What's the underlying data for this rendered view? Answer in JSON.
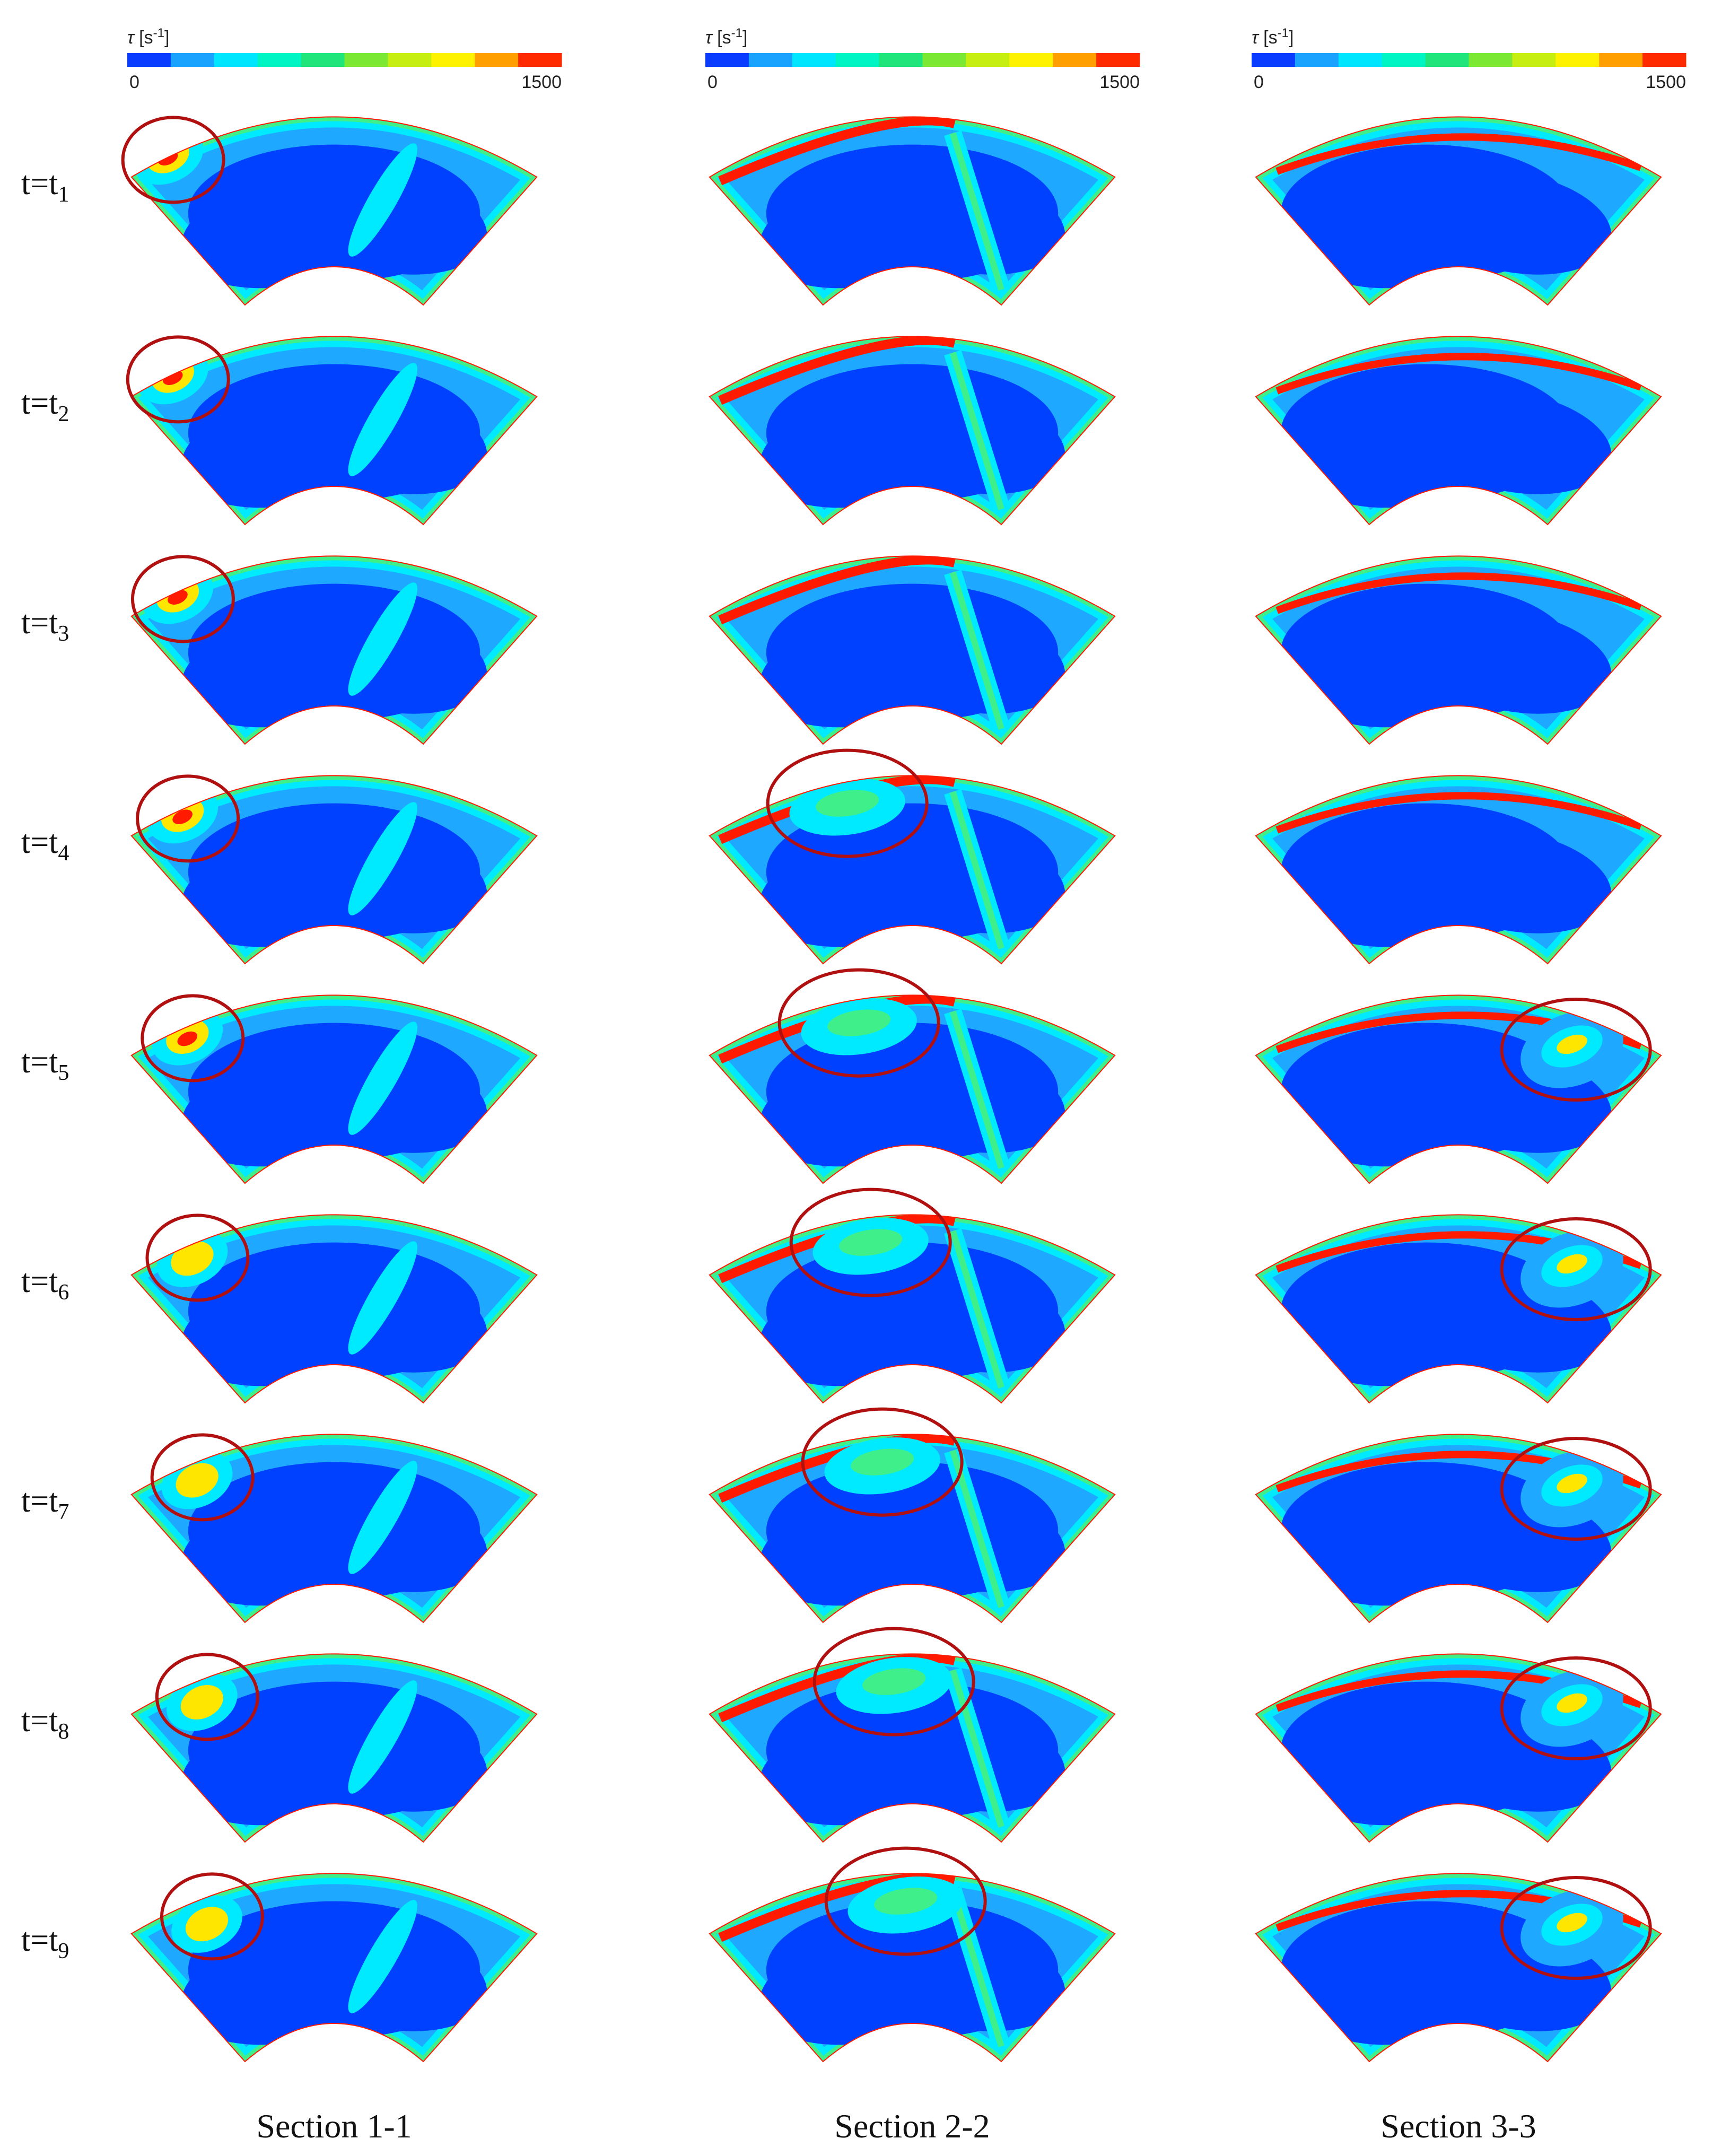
{
  "figure": {
    "colorbar": {
      "title_symbol": "τ",
      "title_unit": "[s",
      "title_exp": "-1",
      "title_close": "]",
      "min_label": "0",
      "max_label": "1500",
      "colors": [
        "#0a3cff",
        "#1aa2ff",
        "#00e6ff",
        "#00f5c4",
        "#1fe57a",
        "#7be834",
        "#c6ee10",
        "#fff200",
        "#ffa000",
        "#ff2a00"
      ]
    },
    "field_colors": {
      "core": "#0040ff",
      "low": "#1fa8ff",
      "mid": "#00eaff",
      "green": "#3ff08a",
      "yellow": "#ffe600",
      "hot": "#ff1a00",
      "circle": "#b01010"
    },
    "rows": [
      {
        "t": "t=t",
        "sub": "1"
      },
      {
        "t": "t=t",
        "sub": "2"
      },
      {
        "t": "t=t",
        "sub": "3"
      },
      {
        "t": "t=t",
        "sub": "4"
      },
      {
        "t": "t=t",
        "sub": "5"
      },
      {
        "t": "t=t",
        "sub": "6"
      },
      {
        "t": "t=t",
        "sub": "7"
      },
      {
        "t": "t=t",
        "sub": "8"
      },
      {
        "t": "t=t",
        "sub": "9"
      }
    ],
    "sections": [
      {
        "label": "Section 1-1"
      },
      {
        "label": "Section 2-2"
      },
      {
        "label": "Section 3-3"
      }
    ]
  }
}
